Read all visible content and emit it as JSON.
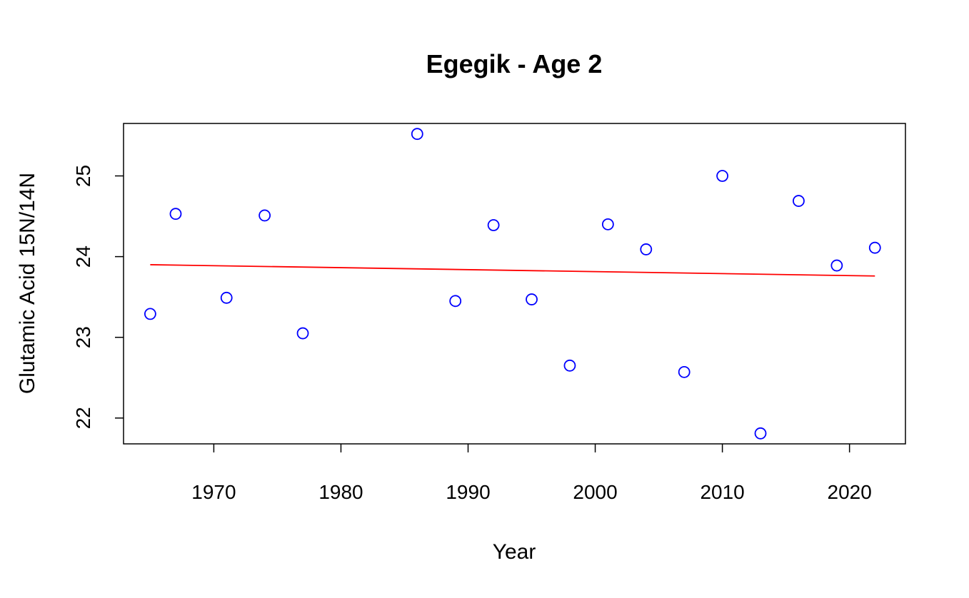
{
  "chart_data": {
    "type": "scatter",
    "title": "Egegik - Age 2",
    "xlabel": "Year",
    "ylabel": "Glutamic Acid 15N/14N",
    "xlim": [
      1962.9,
      2024.4
    ],
    "ylim": [
      21.68,
      25.65
    ],
    "x_ticks": [
      1970,
      1980,
      1990,
      2000,
      2010,
      2020
    ],
    "y_ticks": [
      22,
      23,
      24,
      25
    ],
    "x_tick_labels": [
      "1970",
      "1980",
      "1990",
      "2000",
      "2010",
      "2020"
    ],
    "y_tick_labels": [
      "22",
      "23",
      "24",
      "25"
    ],
    "point_color": "#0000ff",
    "trend_color": "#ff0000",
    "grid": false,
    "legend": "none",
    "series": [
      {
        "x": [
          1965,
          1967,
          1971,
          1974,
          1977,
          1986,
          1989,
          1992,
          1995,
          1998,
          2001,
          2004,
          2007,
          2010,
          2013,
          2016,
          2019,
          2022
        ],
        "y": [
          23.29,
          24.53,
          23.49,
          24.51,
          23.05,
          25.52,
          23.45,
          24.39,
          23.47,
          22.65,
          24.4,
          24.09,
          22.57,
          25.0,
          21.81,
          24.69,
          23.89,
          24.11
        ]
      }
    ],
    "trend_line": {
      "x": [
        1965,
        2022
      ],
      "y": [
        23.9,
        23.76
      ]
    }
  }
}
